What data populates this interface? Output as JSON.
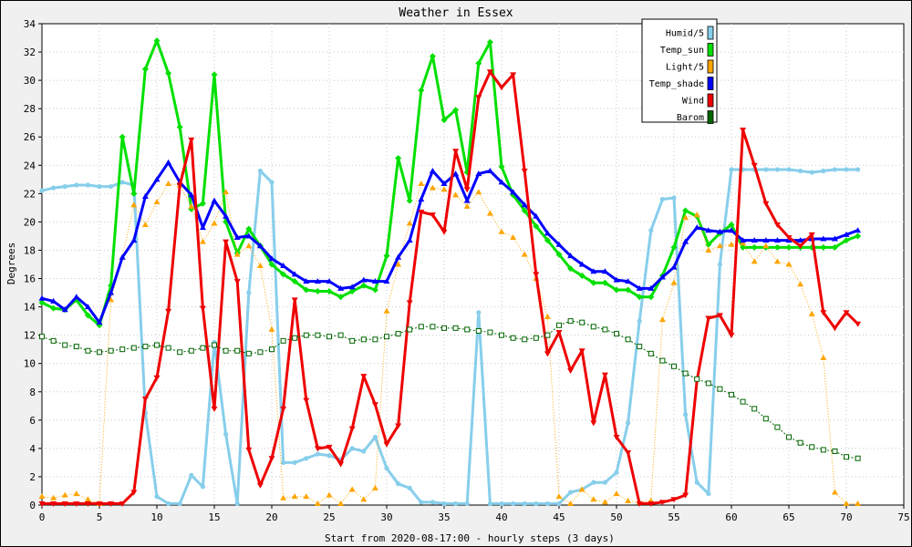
{
  "chart_data": {
    "type": "line",
    "title": "Weather in Essex",
    "xlabel": "Start from 2020-08-17:00 - hourly steps (3 days)",
    "ylabel": "Degrees",
    "xlim": [
      0,
      75
    ],
    "ylim": [
      0,
      34
    ],
    "xticks": [
      0,
      5,
      10,
      15,
      20,
      25,
      30,
      35,
      40,
      45,
      50,
      55,
      60,
      65,
      70,
      75
    ],
    "yticks": [
      0,
      2,
      4,
      6,
      8,
      10,
      12,
      14,
      16,
      18,
      20,
      22,
      24,
      26,
      28,
      30,
      32,
      34
    ],
    "grid": true,
    "legend_position": "top-right",
    "series": [
      {
        "name": "Humid/5",
        "color": "#87ceeb",
        "marker": "circle",
        "values": [
          22.2,
          22.4,
          22.5,
          22.6,
          22.6,
          22.5,
          22.5,
          22.8,
          22.6,
          6.5,
          0.6,
          0.1,
          0.1,
          2.1,
          1.3,
          11.5,
          5,
          0.1,
          15,
          23.6,
          22.8,
          3,
          3,
          3.3,
          3.6,
          3.5,
          3.2,
          4,
          3.8,
          4.8,
          2.6,
          1.5,
          1.2,
          0.2,
          0.2,
          0.1,
          0.1,
          0.1,
          13.6,
          0.1,
          0.1,
          0.1,
          0.1,
          0.1,
          0.1,
          0.1,
          0.9,
          1.1,
          1.6,
          1.6,
          2.3,
          5.8,
          13,
          19.4,
          21.6,
          21.7,
          6.4,
          1.6,
          0.8,
          17,
          23.7,
          23.7,
          23.7,
          23.7,
          23.7,
          23.7,
          23.6,
          23.5,
          23.6,
          23.7,
          23.7,
          23.7
        ]
      },
      {
        "name": "Temp_sun",
        "color": "#00e000",
        "marker": "diamond",
        "values": [
          14.3,
          13.9,
          13.8,
          14.5,
          13.4,
          12.7,
          15.5,
          26,
          22,
          30.8,
          32.8,
          30.5,
          26.7,
          20.9,
          21.3,
          30.4,
          20,
          17.8,
          19.5,
          18.3,
          17,
          16.3,
          15.8,
          15.2,
          15.1,
          15.1,
          14.7,
          15.1,
          15.5,
          15.2,
          17.6,
          24.5,
          21.5,
          29.3,
          31.7,
          27.2,
          27.9,
          23.5,
          31.2,
          32.7,
          23.9,
          21.9,
          20.8,
          19.7,
          18.7,
          17.7,
          16.7,
          16.2,
          15.7,
          15.7,
          15.2,
          15.2,
          14.7,
          14.7,
          16.2,
          18.2,
          20.8,
          20.4,
          18.4,
          19.2,
          19.8,
          18.2,
          18.2,
          18.2,
          18.2,
          18.2,
          18.2,
          18.2,
          18.2,
          18.2,
          18.7,
          19
        ]
      },
      {
        "name": "Light/5",
        "color": "#ffa500",
        "marker": "triangle-up",
        "values": [
          0.6,
          0.5,
          0.7,
          0.8,
          0.4,
          0.1,
          14.5,
          17.5,
          21.2,
          19.8,
          21.4,
          22.7,
          22.6,
          21.1,
          18.6,
          19.9,
          22.1,
          17.7,
          18.3,
          16.9,
          12.4,
          0.5,
          0.6,
          0.6,
          0.1,
          0.7,
          0.1,
          1.1,
          0.4,
          1.2,
          13.7,
          17,
          19.9,
          22.7,
          22.4,
          22.3,
          21.9,
          21.1,
          22.1,
          20.6,
          19.3,
          18.9,
          17.7,
          16,
          13.3,
          0.6,
          0.1,
          1.1,
          0.4,
          0.2,
          0.8,
          0.3,
          0.2,
          0.3,
          13.1,
          15.7,
          20.3,
          20.5,
          18,
          18.3,
          18.4,
          18.5,
          17.2,
          18.3,
          17.2,
          17,
          15.6,
          13.5,
          10.4,
          0.9,
          0.1,
          0.1
        ]
      },
      {
        "name": "Temp_shade",
        "color": "#0000ff",
        "marker": "triangle-up",
        "values": [
          14.6,
          14.4,
          13.8,
          14.7,
          14,
          12.9,
          15,
          17.5,
          18.7,
          21.8,
          23,
          24.2,
          22.8,
          21.9,
          19.6,
          21.5,
          20.4,
          18.9,
          19,
          18.3,
          17.4,
          16.9,
          16.3,
          15.8,
          15.8,
          15.8,
          15.3,
          15.4,
          15.9,
          15.8,
          15.8,
          17.5,
          18.7,
          21.6,
          23.6,
          22.7,
          23.4,
          21.5,
          23.4,
          23.6,
          22.8,
          22.1,
          21.2,
          20.4,
          19.2,
          18.4,
          17.6,
          17,
          16.5,
          16.5,
          15.9,
          15.8,
          15.3,
          15.3,
          16.1,
          16.8,
          18.6,
          19.6,
          19.4,
          19.3,
          19.4,
          18.7,
          18.7,
          18.7,
          18.7,
          18.7,
          18.7,
          18.8,
          18.8,
          18.8,
          19.1,
          19.4
        ]
      },
      {
        "name": "Wind",
        "color": "#ee0000",
        "marker": "triangle-down",
        "values": [
          0.1,
          0.1,
          0.1,
          0.1,
          0.1,
          0.1,
          0.1,
          0.1,
          0.9,
          7.5,
          9,
          13.7,
          22.6,
          25.8,
          13.9,
          6.8,
          18.6,
          15.8,
          3.9,
          1.4,
          3.3,
          6.8,
          14.5,
          7.4,
          4,
          4.1,
          2.9,
          5.4,
          9.1,
          7.1,
          4.3,
          5.6,
          14.3,
          20.7,
          20.5,
          19.3,
          25,
          22.3,
          28.8,
          30.6,
          29.5,
          30.4,
          23.6,
          16.3,
          10.7,
          12.2,
          9.5,
          10.9,
          5.8,
          9.2,
          4.8,
          3.7,
          0.1,
          0.1,
          0.2,
          0.4,
          0.7,
          8.8,
          13.2,
          13.4,
          12,
          26.5,
          24,
          21.3,
          19.8,
          18.9,
          18.3,
          19.1,
          13.6,
          12.5,
          13.6,
          12.8
        ]
      },
      {
        "name": "Barom",
        "color": "#006400",
        "marker": "square-open",
        "values": [
          11.9,
          11.6,
          11.3,
          11.2,
          10.9,
          10.8,
          10.9,
          11,
          11.1,
          11.2,
          11.3,
          11.1,
          10.8,
          10.9,
          11.1,
          11.3,
          10.9,
          10.9,
          10.7,
          10.8,
          11,
          11.6,
          11.8,
          12,
          12,
          11.9,
          12,
          11.6,
          11.7,
          11.7,
          11.9,
          12.1,
          12.4,
          12.6,
          12.6,
          12.5,
          12.5,
          12.4,
          12.3,
          12.2,
          12,
          11.8,
          11.7,
          11.8,
          12,
          12.7,
          13,
          12.9,
          12.6,
          12.4,
          12.1,
          11.7,
          11.2,
          10.7,
          10.2,
          9.8,
          9.3,
          8.9,
          8.6,
          8.2,
          7.8,
          7.3,
          6.8,
          6.1,
          5.5,
          4.8,
          4.4,
          4.1,
          3.9,
          3.8,
          3.4,
          3.3
        ]
      }
    ]
  }
}
